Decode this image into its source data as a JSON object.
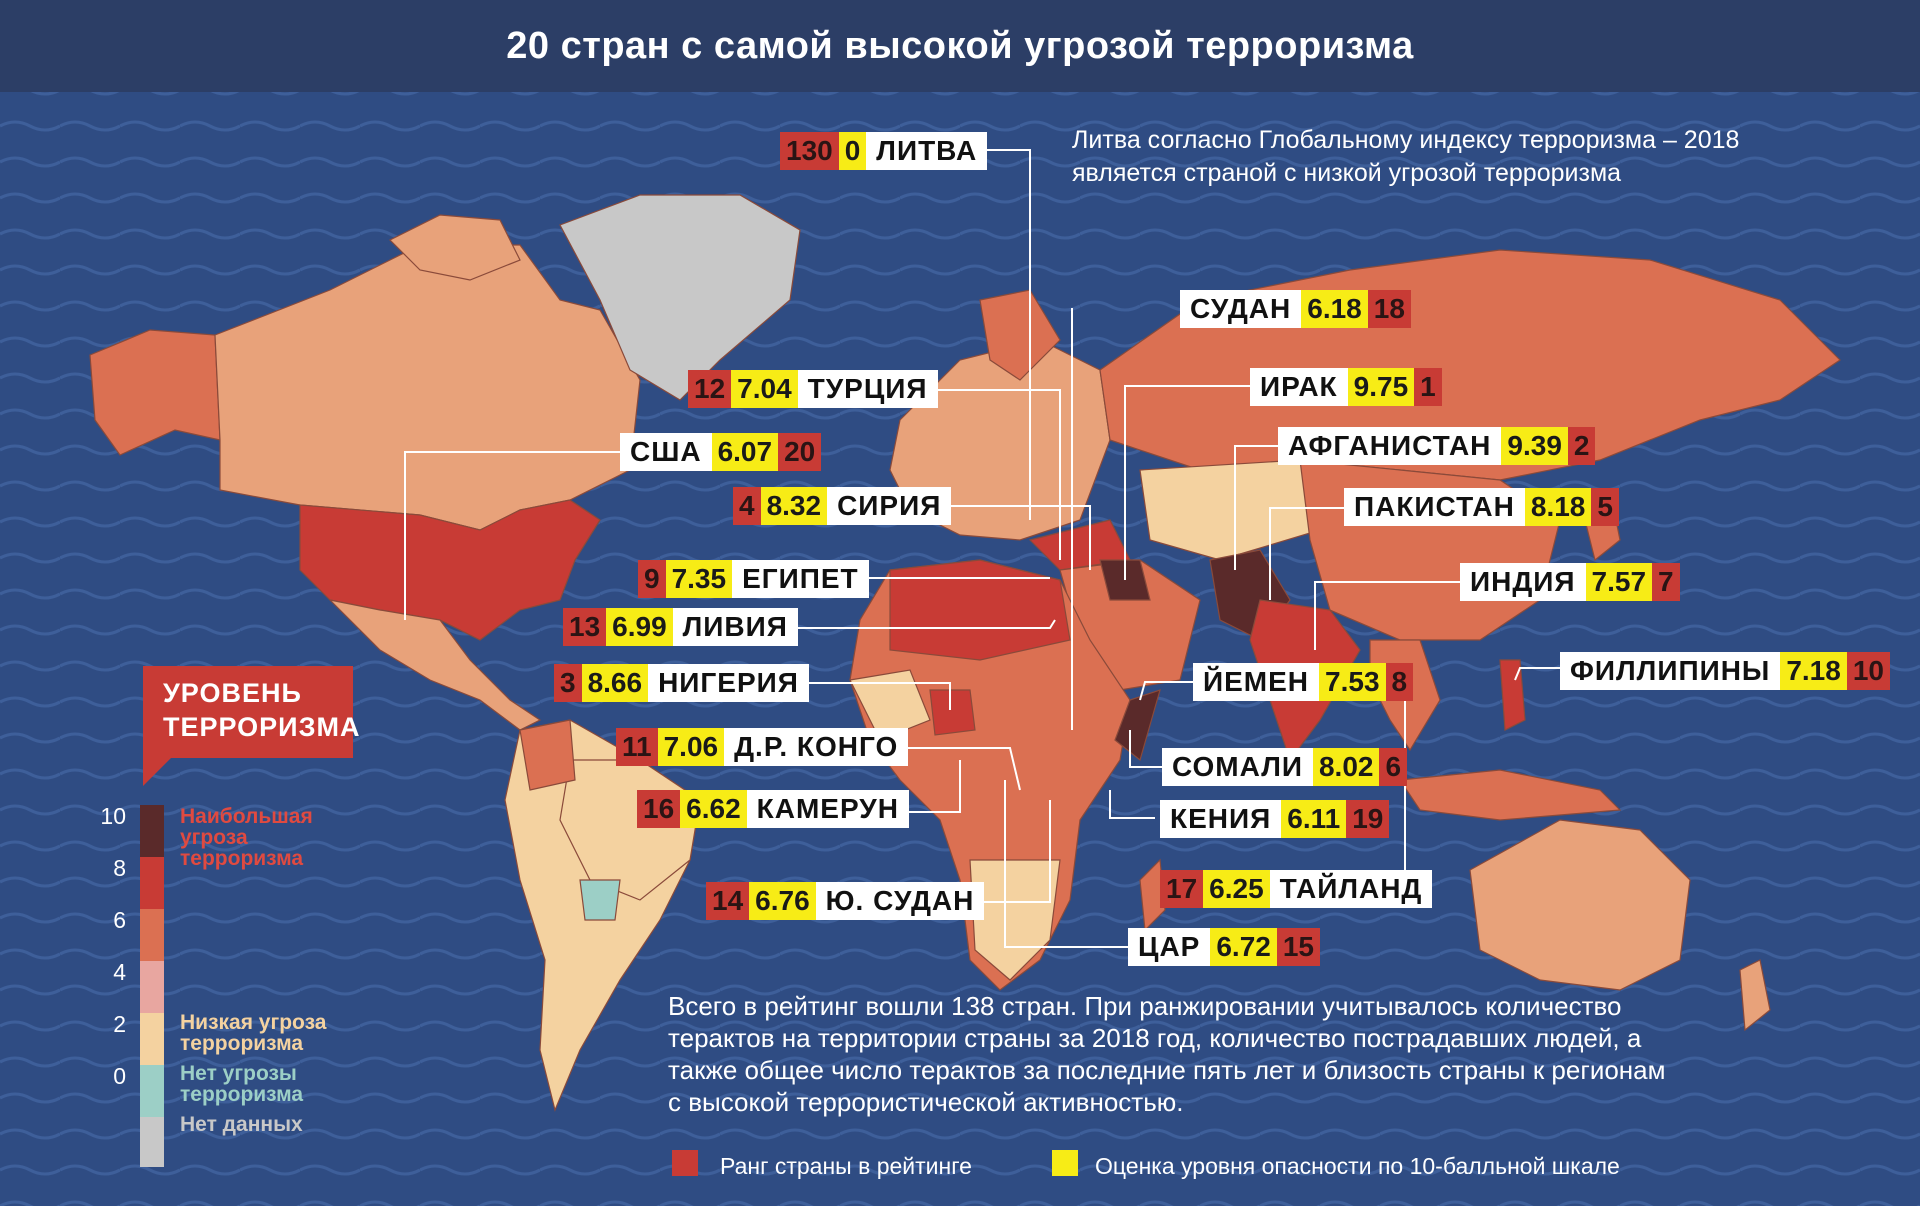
{
  "title": "20 стран с самой высокой угрозой терроризма",
  "note_top": "Литва согласно Глобальному индексу терроризма – 2018 является страной с низкой угрозой терроризма",
  "note_bottom": "Всего в рейтинг вошли 138 стран. При ранжировании учитывалось количество терактов на территории страны за 2018 год, количество пострадавших людей, а также общее число терактов за последние пять лет и близость страны к регионам с высокой террористической активностью.",
  "legend": {
    "title_line1": "УРОВЕНЬ",
    "title_line2": "ТЕРРОРИЗМА",
    "scale": [
      "10",
      "8",
      "6",
      "4",
      "2",
      "0"
    ],
    "high": "Наибольшая угроза терроризма",
    "low": "Низкая угроза терроризма",
    "none": "Нет угрозы терроризма",
    "nodata": "Нет данных",
    "colors": {
      "c10": "#5a2a2a",
      "c8": "#c83b35",
      "c6": "#db7052",
      "c4": "#e8a6a0",
      "c2": "#f4d2a0",
      "c0": "#9ccfc6",
      "nd": "#c8c8c8"
    }
  },
  "key": {
    "rank_label": "Ранг страны в рейтинге",
    "score_label": "Оценка уровня опасности по 10-балльной шкале",
    "rank_color": "#c83b35",
    "score_color": "#f7ec16"
  },
  "countries": {
    "lithuania": {
      "rank": "130",
      "score": "0",
      "name": "ЛИТВА"
    },
    "sudan": {
      "rank": "18",
      "score": "6.18",
      "name": "СУДАН"
    },
    "turkey": {
      "rank": "12",
      "score": "7.04",
      "name": "ТУРЦИЯ"
    },
    "iraq": {
      "rank": "1",
      "score": "9.75",
      "name": "ИРАК"
    },
    "usa": {
      "rank": "20",
      "score": "6.07",
      "name": "США"
    },
    "afghanistan": {
      "rank": "2",
      "score": "9.39",
      "name": "АФГАНИСТАН"
    },
    "syria": {
      "rank": "4",
      "score": "8.32",
      "name": "СИРИЯ"
    },
    "pakistan": {
      "rank": "5",
      "score": "8.18",
      "name": "ПАКИСТАН"
    },
    "egypt": {
      "rank": "9",
      "score": "7.35",
      "name": "ЕГИПЕТ"
    },
    "india": {
      "rank": "7",
      "score": "7.57",
      "name": "ИНДИЯ"
    },
    "libya": {
      "rank": "13",
      "score": "6.99",
      "name": "ЛИВИЯ"
    },
    "nigeria": {
      "rank": "3",
      "score": "8.66",
      "name": "НИГЕРИЯ"
    },
    "yemen": {
      "rank": "8",
      "score": "7.53",
      "name": "ЙЕМЕН"
    },
    "philippines": {
      "rank": "10",
      "score": "7.18",
      "name": "ФИЛЛИПИНЫ"
    },
    "drc": {
      "rank": "11",
      "score": "7.06",
      "name": "Д.Р. КОНГО"
    },
    "somalia": {
      "rank": "6",
      "score": "8.02",
      "name": "СОМАЛИ"
    },
    "cameroon": {
      "rank": "16",
      "score": "6.62",
      "name": "КАМЕРУН"
    },
    "kenya": {
      "rank": "19",
      "score": "6.11",
      "name": "КЕНИЯ"
    },
    "thailand": {
      "rank": "17",
      "score": "6.25",
      "name": "ТАЙЛАНД"
    },
    "south_sudan": {
      "rank": "14",
      "score": "6.76",
      "name": "Ю. СУДАН"
    },
    "car": {
      "rank": "15",
      "score": "6.72",
      "name": "ЦАР"
    }
  }
}
